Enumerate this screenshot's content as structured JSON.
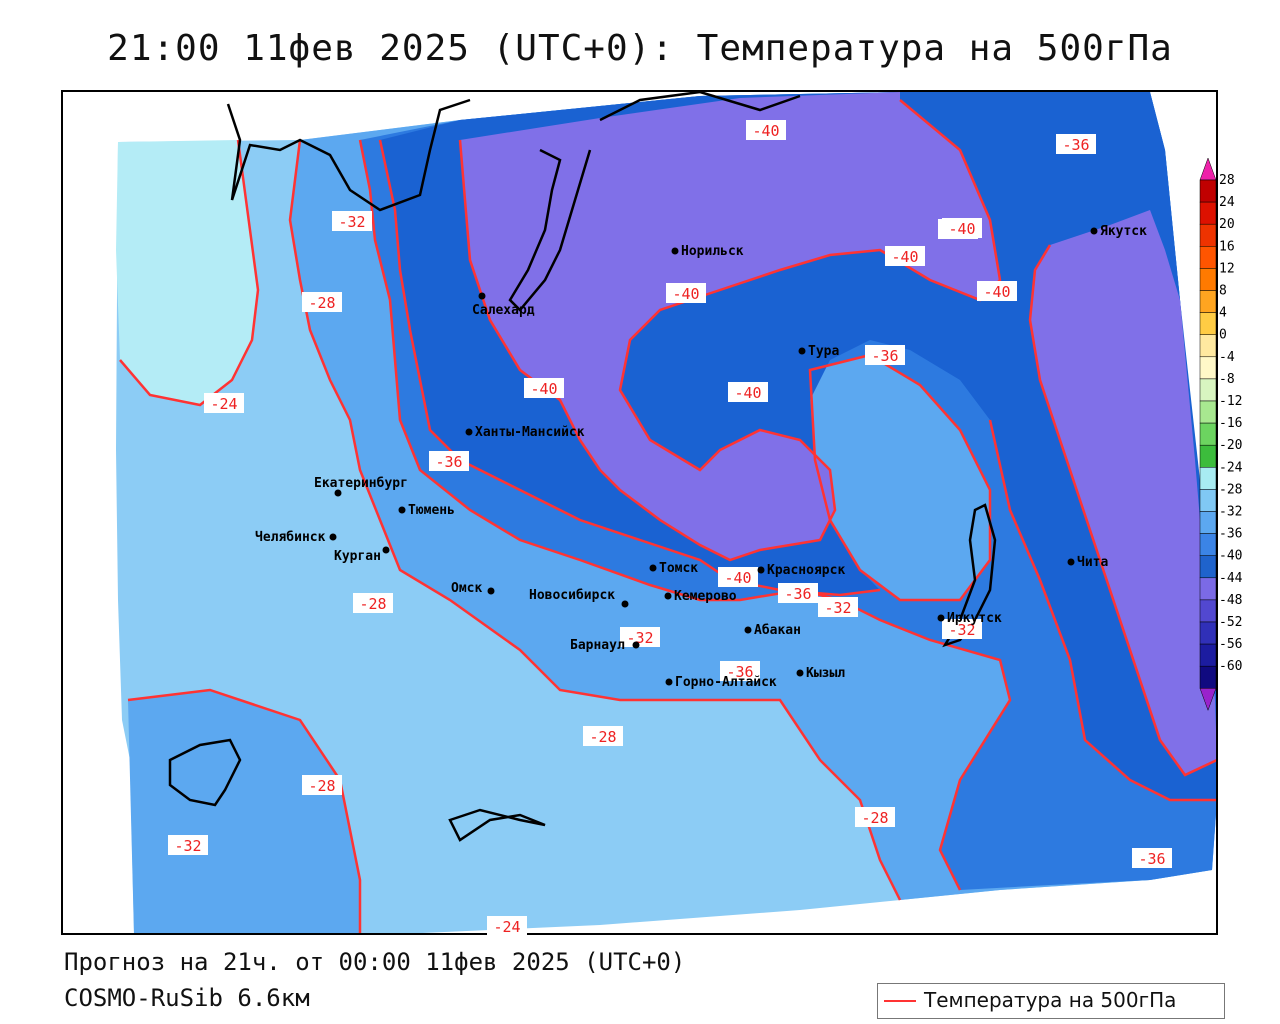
{
  "title": "21:00 11фев 2025 (UTC+0): Температура на 500гПа",
  "footer": {
    "forecast": "Прогноз на 21ч. от 00:00 11фев 2025 (UTC+0)",
    "model": "COSMO-RuSib 6.6км"
  },
  "legend": {
    "label": "Температура на 500гПа",
    "line_color": "#ff3333"
  },
  "colorbar": {
    "ticks": [
      "28",
      "24",
      "20",
      "16",
      "12",
      "8",
      "4",
      "0",
      "-4",
      "-8",
      "-12",
      "-16",
      "-20",
      "-24",
      "-28",
      "-32",
      "-36",
      "-40",
      "-44",
      "-48",
      "-52",
      "-56",
      "-60"
    ],
    "colors": [
      "#c00000",
      "#dd1100",
      "#ee3300",
      "#ff5500",
      "#ff7a00",
      "#ffa520",
      "#ffcc44",
      "#ffe9a0",
      "#fff8c8",
      "#d8f5c0",
      "#a8e890",
      "#6cd460",
      "#3cbc3c",
      "#a8ecf2",
      "#80c8f4",
      "#5ca8f0",
      "#3b84e6",
      "#1f63cc",
      "#7b6ae6",
      "#5248d0",
      "#3030b8",
      "#1c1ca0",
      "#100a80"
    ],
    "top_color": "#ee22aa",
    "bottom_color": "#9922cc"
  },
  "fill_colors": {
    "t_minus24": "#b4ecf6",
    "t_minus28": "#8cccf5",
    "t_minus32": "#5ca8f0",
    "t_minus36": "#2d7ae0",
    "t_minus40": "#1a62d2",
    "t_minus44": "#8070e8"
  },
  "cities": [
    {
      "name": "Норильск",
      "key": "norilsk"
    },
    {
      "name": "Салехард",
      "key": "salekhard"
    },
    {
      "name": "Якутск",
      "key": "yakutsk"
    },
    {
      "name": "Тура",
      "key": "tura"
    },
    {
      "name": "Ханты-Мансийск",
      "key": "khanty-mansiysk"
    },
    {
      "name": "Екатеринбург",
      "key": "yekaterinburg"
    },
    {
      "name": "Тюмень",
      "key": "tyumen"
    },
    {
      "name": "Челябинск",
      "key": "chelyabinsk"
    },
    {
      "name": "Курган",
      "key": "kurgan"
    },
    {
      "name": "Омск",
      "key": "omsk"
    },
    {
      "name": "Новосибирск",
      "key": "novosibirsk"
    },
    {
      "name": "Томск",
      "key": "tomsk"
    },
    {
      "name": "Кемерово",
      "key": "kemerovo"
    },
    {
      "name": "Красноярск",
      "key": "krasnoyarsk"
    },
    {
      "name": "Абакан",
      "key": "abakan"
    },
    {
      "name": "Барнаул",
      "key": "barnaul"
    },
    {
      "name": "Горно-Алтайск",
      "key": "gorno-altaysk"
    },
    {
      "name": "Кызыл",
      "key": "kyzyl"
    },
    {
      "name": "Иркутск",
      "key": "irkutsk"
    },
    {
      "name": "Чита",
      "key": "chita"
    }
  ],
  "contour_labels": [
    {
      "text": "-40"
    },
    {
      "text": "-36"
    },
    {
      "text": "-32"
    },
    {
      "text": "-28"
    },
    {
      "text": "-40"
    },
    {
      "text": "-40"
    },
    {
      "text": "-40"
    },
    {
      "text": "-40"
    },
    {
      "text": "-40"
    },
    {
      "text": "-40"
    },
    {
      "text": "-36"
    },
    {
      "text": "-24"
    },
    {
      "text": "-36"
    },
    {
      "text": "-40"
    },
    {
      "text": "-40"
    },
    {
      "text": "-36"
    },
    {
      "text": "-32"
    },
    {
      "text": "-28"
    },
    {
      "text": "-32"
    },
    {
      "text": "-32"
    },
    {
      "text": "-28"
    },
    {
      "text": "-28"
    },
    {
      "text": "-32"
    },
    {
      "text": "-28"
    },
    {
      "text": "-36"
    },
    {
      "text": "-24"
    },
    {
      "text": "-36"
    }
  ]
}
